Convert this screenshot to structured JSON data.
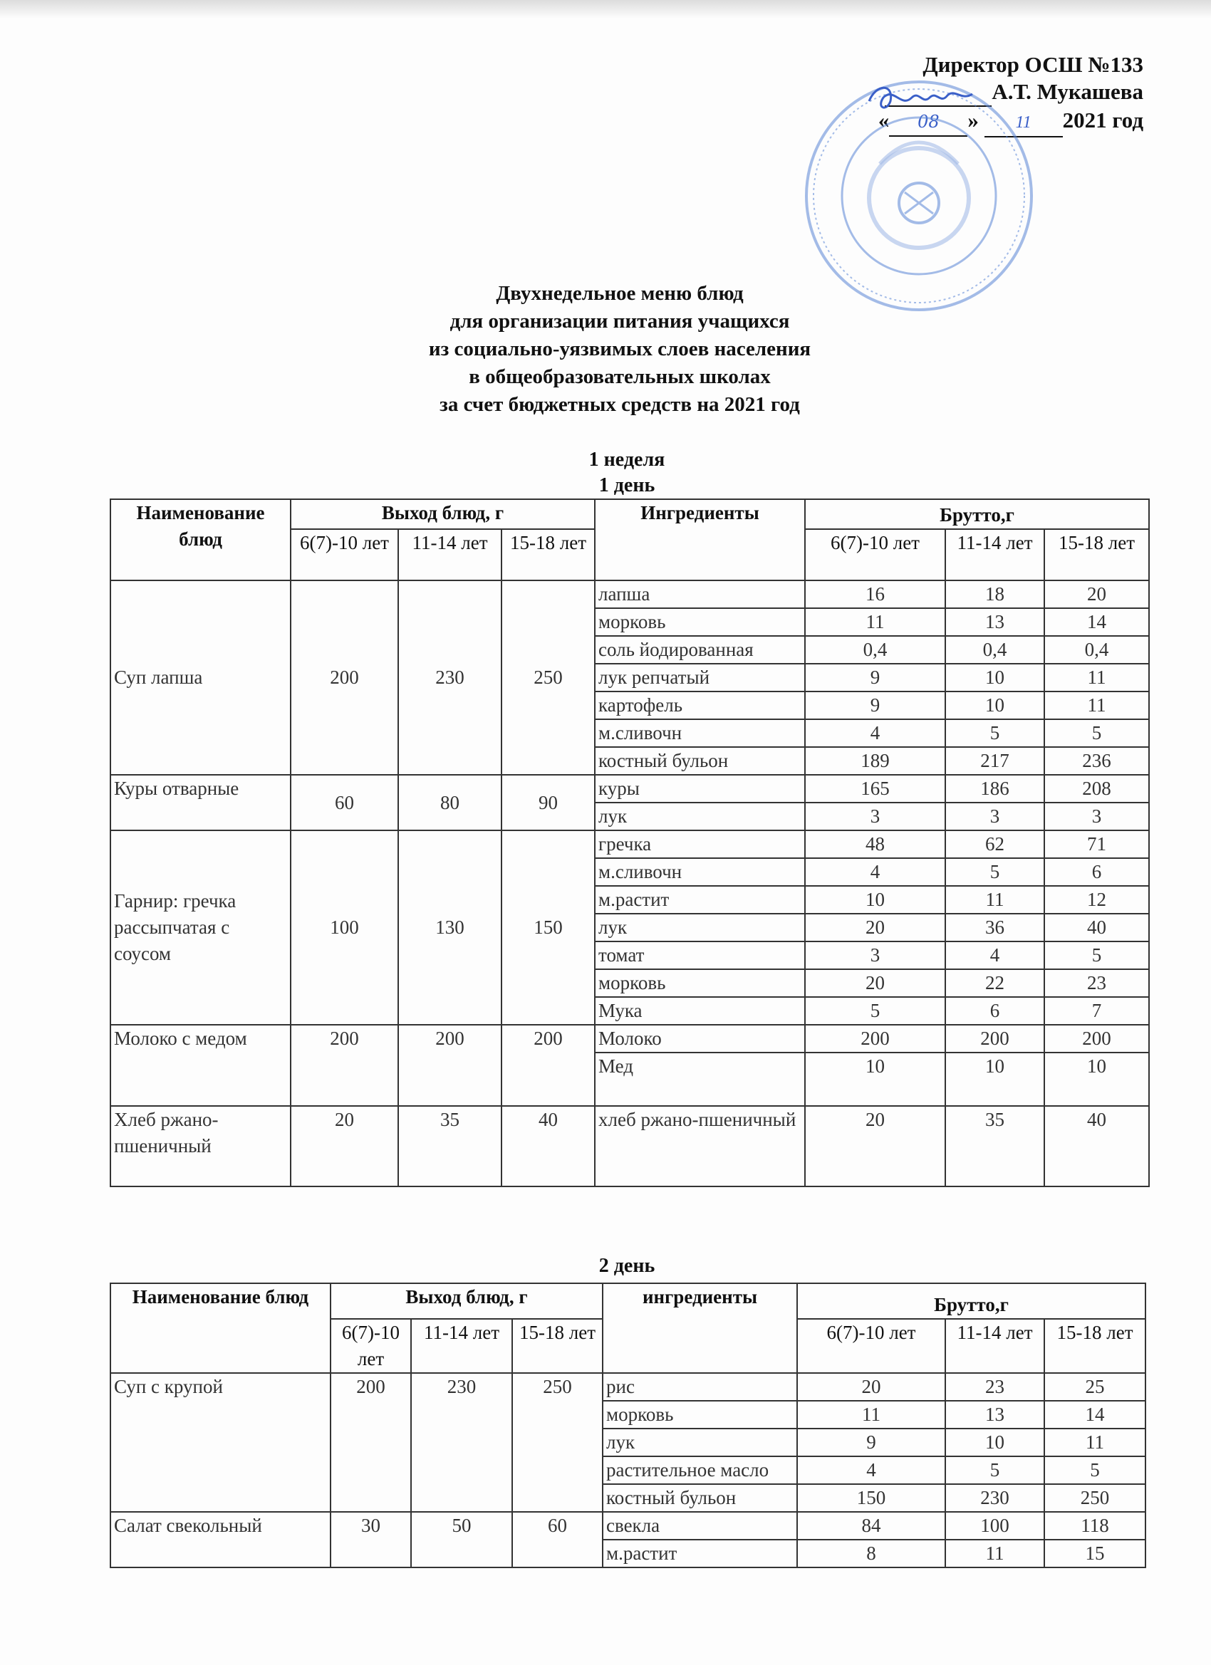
{
  "approval": {
    "line1": "Директор ОСШ №133",
    "line2_name": "А.Т. Мукашева",
    "line3_open": "«",
    "day": "08",
    "line3_mid": "»",
    "month": "11",
    "line3_year": "2021 год",
    "signature_color": "#3a5fc8",
    "stamp_color": "#5b86d6"
  },
  "title_lines": [
    "Двухнедельное меню блюд",
    "для организации питания учащихся",
    "из социально-уязвимых слоев населения",
    "в общеобразовательных школах",
    "за счет бюджетных средств на 2021 год"
  ],
  "week_label": "1 неделя",
  "tables": [
    {
      "day_label": "1 день",
      "headers": {
        "dish": "Наименование блюд",
        "yield": "Выход блюд, г",
        "ingredients": "Ингредиенты",
        "brutto": "Брутто,г",
        "yield_ages": [
          "6(7)-10 лет",
          "11-14 лет",
          "15-18 лет"
        ],
        "brutto_ages": [
          "6(7)-10 лет",
          "11-14 лет",
          "15-18 лет"
        ]
      },
      "dishes": [
        {
          "name": "Суп лапша",
          "yield": [
            "200",
            "230",
            "250"
          ],
          "ingredients": [
            {
              "name": "лапша",
              "brutto": [
                "16",
                "18",
                "20"
              ]
            },
            {
              "name": "морковь",
              "brutto": [
                "11",
                "13",
                "14"
              ]
            },
            {
              "name": "соль йодированная",
              "brutto": [
                "0,4",
                "0,4",
                "0,4"
              ]
            },
            {
              "name": "лук репчатый",
              "brutto": [
                "9",
                "10",
                "11"
              ]
            },
            {
              "name": "картофель",
              "brutto": [
                "9",
                "10",
                "11"
              ]
            },
            {
              "name": "м.сливочн",
              "brutto": [
                "4",
                "5",
                "5"
              ]
            },
            {
              "name": "костный бульон",
              "brutto": [
                "189",
                "217",
                "236"
              ]
            }
          ]
        },
        {
          "name": "Куры отварные",
          "yield": [
            "60",
            "80",
            "90"
          ],
          "ingredients": [
            {
              "name": "куры",
              "brutto": [
                "165",
                "186",
                "208"
              ]
            },
            {
              "name": "лук",
              "brutto": [
                "3",
                "3",
                "3"
              ]
            }
          ]
        },
        {
          "name": "Гарнир: гречка рассыпчатая с соусом",
          "yield": [
            "100",
            "130",
            "150"
          ],
          "ingredients": [
            {
              "name": "гречка",
              "brutto": [
                "48",
                "62",
                "71"
              ]
            },
            {
              "name": "м.сливочн",
              "brutto": [
                "4",
                "5",
                "6"
              ]
            },
            {
              "name": "м.растит",
              "brutto": [
                "10",
                "11",
                "12"
              ]
            },
            {
              "name": "лук",
              "brutto": [
                "20",
                "36",
                "40"
              ]
            },
            {
              "name": "томат",
              "brutto": [
                "3",
                "4",
                "5"
              ]
            },
            {
              "name": "морковь",
              "brutto": [
                "20",
                "22",
                "23"
              ]
            },
            {
              "name": "Мука",
              "brutto": [
                "5",
                "6",
                "7"
              ]
            }
          ]
        },
        {
          "name": "Молоко с медом",
          "yield": [
            "200",
            "200",
            "200"
          ],
          "ingredients": [
            {
              "name": "Молоко",
              "brutto": [
                "200",
                "200",
                "200"
              ]
            },
            {
              "name": "Мед",
              "brutto": [
                "10",
                "10",
                "10"
              ]
            }
          ]
        },
        {
          "name": "Хлеб ржано-пшеничный",
          "yield": [
            "20",
            "35",
            "40"
          ],
          "ingredients": [
            {
              "name": "хлеб ржано-пшеничный",
              "brutto": [
                "20",
                "35",
                "40"
              ]
            }
          ]
        }
      ]
    },
    {
      "day_label": "2 день",
      "headers": {
        "dish": "Наименование блюд",
        "yield": "Выход блюд, г",
        "ingredients": "ингредиенты",
        "brutto": "Брутто,г",
        "yield_ages": [
          "6(7)-10 лет",
          "11-14 лет",
          "15-18 лет"
        ],
        "brutto_ages": [
          "6(7)-10 лет",
          "11-14 лет",
          "15-18 лет"
        ]
      },
      "dishes": [
        {
          "name": "Суп с крупой",
          "yield": [
            "200",
            "230",
            "250"
          ],
          "ingredients": [
            {
              "name": "рис",
              "brutto": [
                "20",
                "23",
                "25"
              ]
            },
            {
              "name": "морковь",
              "brutto": [
                "11",
                "13",
                "14"
              ]
            },
            {
              "name": "лук",
              "brutto": [
                "9",
                "10",
                "11"
              ]
            },
            {
              "name": "растительное масло",
              "brutto": [
                "4",
                "5",
                "5"
              ]
            },
            {
              "name": "костный бульон",
              "brutto": [
                "150",
                "230",
                "250"
              ]
            }
          ]
        },
        {
          "name": "Салат свекольный",
          "yield": [
            "30",
            "50",
            "60"
          ],
          "ingredients": [
            {
              "name": "свекла",
              "brutto": [
                "84",
                "100",
                "118"
              ]
            },
            {
              "name": "м.растит",
              "brutto": [
                "8",
                "11",
                "15"
              ]
            }
          ]
        }
      ]
    }
  ]
}
